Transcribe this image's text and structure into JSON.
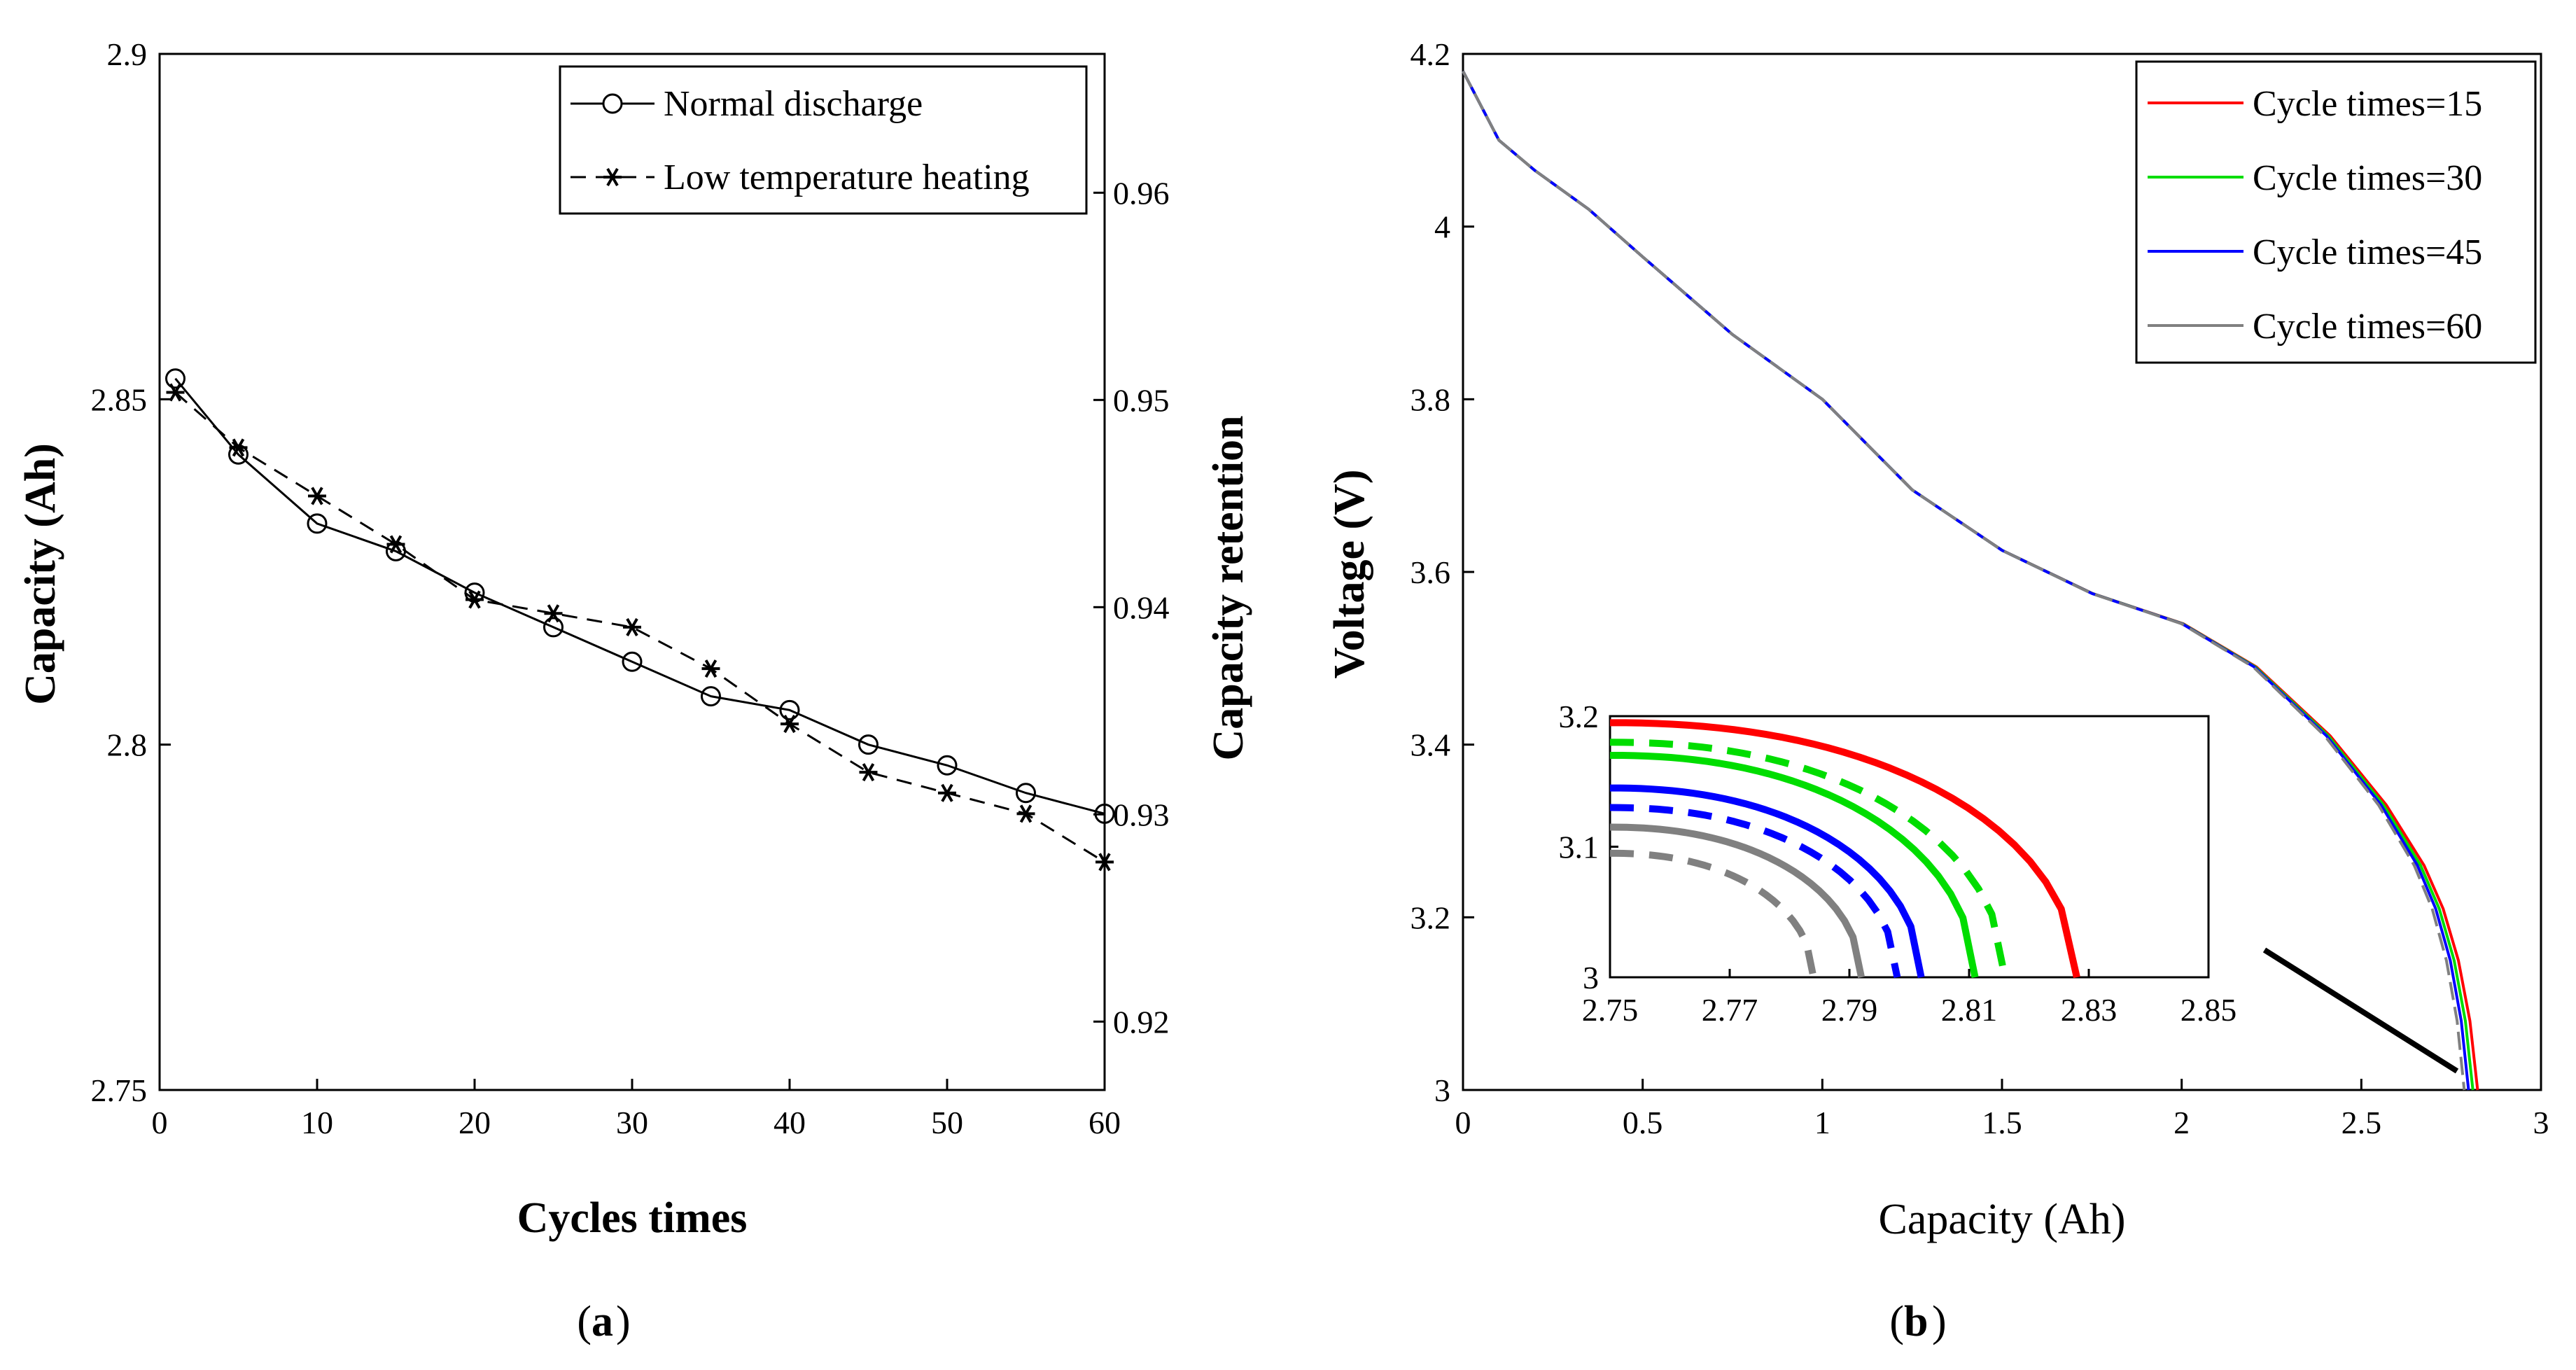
{
  "chart_data": [
    {
      "type": "line",
      "panel_label": "(a)",
      "panel_letter": "a",
      "xlabel": "Cycles times",
      "ylabel": "Capacity (Ah)",
      "y2label": "Capacity retention",
      "xlim": [
        0,
        60
      ],
      "ylim": [
        2.75,
        2.9
      ],
      "y2lim": [
        0.9167,
        0.9667
      ],
      "xticks": [
        "0",
        "10",
        "20",
        "30",
        "40",
        "50",
        "60"
      ],
      "yticks": [
        "2.75",
        "2.8",
        "2.85",
        "2.9"
      ],
      "y2ticks": [
        "0.92",
        "0.93",
        "0.94",
        "0.95",
        "0.96"
      ],
      "legend_position": "top-right",
      "series": [
        {
          "name": "Normal discharge",
          "marker": "circle",
          "line": "solid",
          "x": [
            1,
            5,
            10,
            15,
            20,
            25,
            30,
            35,
            40,
            45,
            50,
            55,
            60
          ],
          "values": [
            2.853,
            2.842,
            2.832,
            2.828,
            2.822,
            2.817,
            2.812,
            2.807,
            2.805,
            2.8,
            2.797,
            2.793,
            2.79
          ]
        },
        {
          "name": "Low temperature heating",
          "marker": "star",
          "line": "dashed",
          "x": [
            1,
            5,
            10,
            15,
            20,
            25,
            30,
            35,
            40,
            45,
            50,
            55,
            60
          ],
          "values": [
            2.851,
            2.843,
            2.836,
            2.829,
            2.821,
            2.819,
            2.817,
            2.811,
            2.803,
            2.796,
            2.793,
            2.79,
            2.783
          ]
        }
      ]
    },
    {
      "type": "line",
      "panel_label": "(b)",
      "panel_letter": "b",
      "xlabel": "Capacity (Ah)",
      "ylabel": "Voltage (V)",
      "xlim": [
        0,
        3
      ],
      "ylim": [
        3,
        4.2
      ],
      "xticks": [
        "0",
        "0.5",
        "1",
        "1.5",
        "2",
        "2.5",
        "3"
      ],
      "yticks": [
        "3",
        "3.2",
        "3.4",
        "3.6",
        "3.8",
        "4",
        "4.2"
      ],
      "legend_position": "top-right",
      "curve_x": [
        0,
        0.1,
        0.2,
        0.35,
        0.5,
        0.75,
        1.0,
        1.25,
        1.5,
        1.75,
        2.0,
        2.2,
        2.4,
        2.55,
        2.65,
        2.7,
        2.74,
        2.77,
        2.79
      ],
      "curve_v": [
        4.18,
        4.1,
        4.065,
        4.02,
        3.965,
        3.875,
        3.8,
        3.695,
        3.625,
        3.575,
        3.54,
        3.49,
        3.41,
        3.33,
        3.26,
        3.21,
        3.15,
        3.08,
        3.0
      ],
      "series": [
        {
          "name": "Cycle times=15",
          "color": "#ff0000",
          "end_capacity": 2.828
        },
        {
          "name": "Cycle times=30",
          "color": "#00dd00",
          "end_capacity": 2.817
        },
        {
          "name": "Cycle times=45",
          "color": "#0000ff",
          "end_capacity": 2.807
        },
        {
          "name": "Cycle times=60",
          "color": "#808080",
          "end_capacity": 2.797
        }
      ],
      "inset": {
        "xlim": [
          2.75,
          2.85
        ],
        "ylim": [
          3.0,
          3.2
        ],
        "xticks": [
          "2.75",
          "2.77",
          "2.79",
          "2.81",
          "2.83",
          "2.85"
        ],
        "yticks": [
          "3",
          "3.1",
          "3.2"
        ],
        "curves": [
          {
            "series": "Cycle times=15",
            "style": "solid",
            "v_at_2_75": 3.195,
            "end_x": 2.828
          },
          {
            "series": "Cycle times=30",
            "style": "dashed",
            "v_at_2_75": 3.18,
            "end_x": 2.816
          },
          {
            "series": "Cycle times=30",
            "style": "solid",
            "v_at_2_75": 3.17,
            "end_x": 2.811
          },
          {
            "series": "Cycle times=45",
            "style": "solid",
            "v_at_2_75": 3.145,
            "end_x": 2.802
          },
          {
            "series": "Cycle times=45",
            "style": "dashed",
            "v_at_2_75": 3.13,
            "end_x": 2.798
          },
          {
            "series": "Cycle times=60",
            "style": "solid",
            "v_at_2_75": 3.115,
            "end_x": 2.792
          },
          {
            "series": "Cycle times=60",
            "style": "dashed",
            "v_at_2_75": 3.095,
            "end_x": 2.784
          }
        ]
      }
    }
  ]
}
